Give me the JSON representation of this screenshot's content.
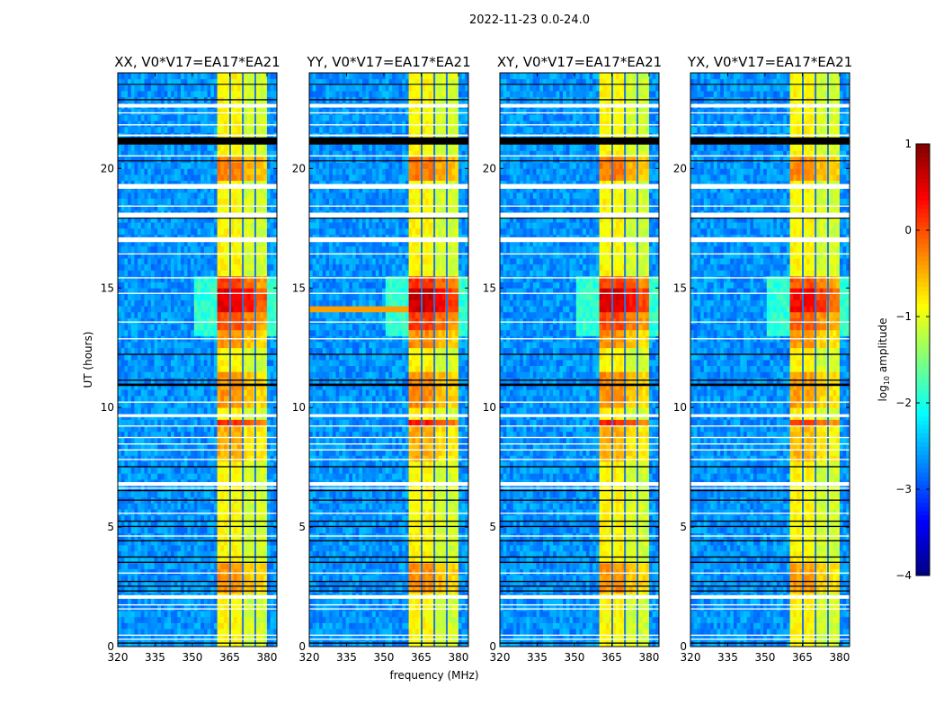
{
  "chart_data": {
    "type": "heatmap",
    "title": "2022-11-23 0.0-24.0",
    "xlabel": "frequency (MHz)",
    "ylabel": "UT (hours)",
    "xlim": [
      320,
      384
    ],
    "ylim": [
      0,
      24
    ],
    "xticks": [
      320,
      335,
      350,
      365,
      380
    ],
    "yticks": [
      0,
      5,
      10,
      15,
      20
    ],
    "grid": false,
    "freq_bin_mhz": 1.333,
    "time_bin_hours": 0.25,
    "colorbar": {
      "label_main": "log",
      "label_sub": "10",
      "label_rest": " amplitude",
      "range": [
        -4,
        1
      ],
      "ticks": [
        1,
        0,
        -1,
        -2,
        -3,
        -4
      ],
      "colormap": "jet",
      "placement": "right"
    },
    "background_level": -2.65,
    "rfi_band": {
      "range_mhz": [
        360.5,
        380
      ],
      "base_level": -1.0,
      "subband_gaps_mhz": [
        365.2,
        370.3,
        375.3
      ],
      "gap_color": "#1f78e6"
    },
    "events_hours": [
      {
        "range": [
          14.0,
          15.0
        ],
        "boost": 1.35
      },
      {
        "range": [
          13.3,
          14.0
        ],
        "boost": 0.85
      },
      {
        "range": [
          15.0,
          15.4
        ],
        "boost": 0.9
      },
      {
        "range": [
          12.5,
          13.3
        ],
        "boost": 0.5
      },
      {
        "range": [
          9.25,
          9.6
        ],
        "boost": 1.0
      },
      {
        "range": [
          10.0,
          11.5
        ],
        "boost": 0.5
      },
      {
        "range": [
          19.5,
          20.5
        ],
        "boost": 0.6
      },
      {
        "range": [
          2.2,
          3.5
        ],
        "boost": 0.5
      },
      {
        "range": [
          7.8,
          9.2
        ],
        "boost": 0.35
      }
    ],
    "halo": {
      "range_mhz": [
        350,
        360.5
      ],
      "range_hours": [
        13.0,
        15.5
      ],
      "level": -1.9
    },
    "flagged_white_hours": [
      [
        0.28,
        0.33
      ],
      [
        0.45,
        0.5
      ],
      [
        1.55,
        1.6
      ],
      [
        1.72,
        1.77
      ],
      [
        2.0,
        2.15
      ],
      [
        3.05,
        3.1
      ],
      [
        4.6,
        4.65
      ],
      [
        5.55,
        5.6
      ],
      [
        6.6,
        6.65
      ],
      [
        6.72,
        6.88
      ],
      [
        7.8,
        7.85
      ],
      [
        8.2,
        8.25
      ],
      [
        8.45,
        8.5
      ],
      [
        8.72,
        8.77
      ],
      [
        9.2,
        9.25
      ],
      [
        9.6,
        9.72
      ],
      [
        10.2,
        10.25
      ],
      [
        12.85,
        12.9
      ],
      [
        13.55,
        13.6
      ],
      [
        14.75,
        14.8
      ],
      [
        15.4,
        15.45
      ],
      [
        16.4,
        16.45
      ],
      [
        16.92,
        17.12
      ],
      [
        17.95,
        18.15
      ],
      [
        18.4,
        18.45
      ],
      [
        19.15,
        19.35
      ],
      [
        20.5,
        20.55
      ],
      [
        21.35,
        21.42
      ],
      [
        21.8,
        21.85
      ],
      [
        22.3,
        22.35
      ],
      [
        22.55,
        22.7
      ]
    ],
    "flagged_black_hours": [
      [
        0.12,
        0.17
      ],
      [
        2.3,
        2.35
      ],
      [
        2.5,
        2.55
      ],
      [
        2.7,
        2.75
      ],
      [
        3.5,
        3.55
      ],
      [
        3.72,
        3.77
      ],
      [
        4.4,
        4.45
      ],
      [
        5.0,
        5.05
      ],
      [
        5.22,
        5.27
      ],
      [
        6.1,
        6.15
      ],
      [
        6.5,
        6.55
      ],
      [
        7.5,
        7.55
      ],
      [
        10.9,
        11.0
      ],
      [
        11.12,
        11.17
      ],
      [
        12.2,
        12.25
      ],
      [
        17.9,
        17.94
      ],
      [
        20.3,
        20.34
      ],
      [
        21.0,
        21.3
      ],
      [
        22.85,
        22.9
      ],
      [
        23.5,
        23.54
      ]
    ],
    "panels": [
      {
        "title": "XX, V0*V17=EA17*EA21",
        "strength": 1.0,
        "line_event": null
      },
      {
        "title": "YY, V0*V17=EA17*EA21",
        "strength": 1.1,
        "line_event": {
          "range_hours": [
            14.1,
            14.35
          ],
          "range_mhz": [
            320,
            360.5
          ],
          "level": -0.4
        }
      },
      {
        "title": "XY, V0*V17=EA17*EA21",
        "strength": 1.05,
        "line_event": null
      },
      {
        "title": "YX, V0*V17=EA17*EA21",
        "strength": 0.9,
        "line_event": null
      }
    ]
  }
}
